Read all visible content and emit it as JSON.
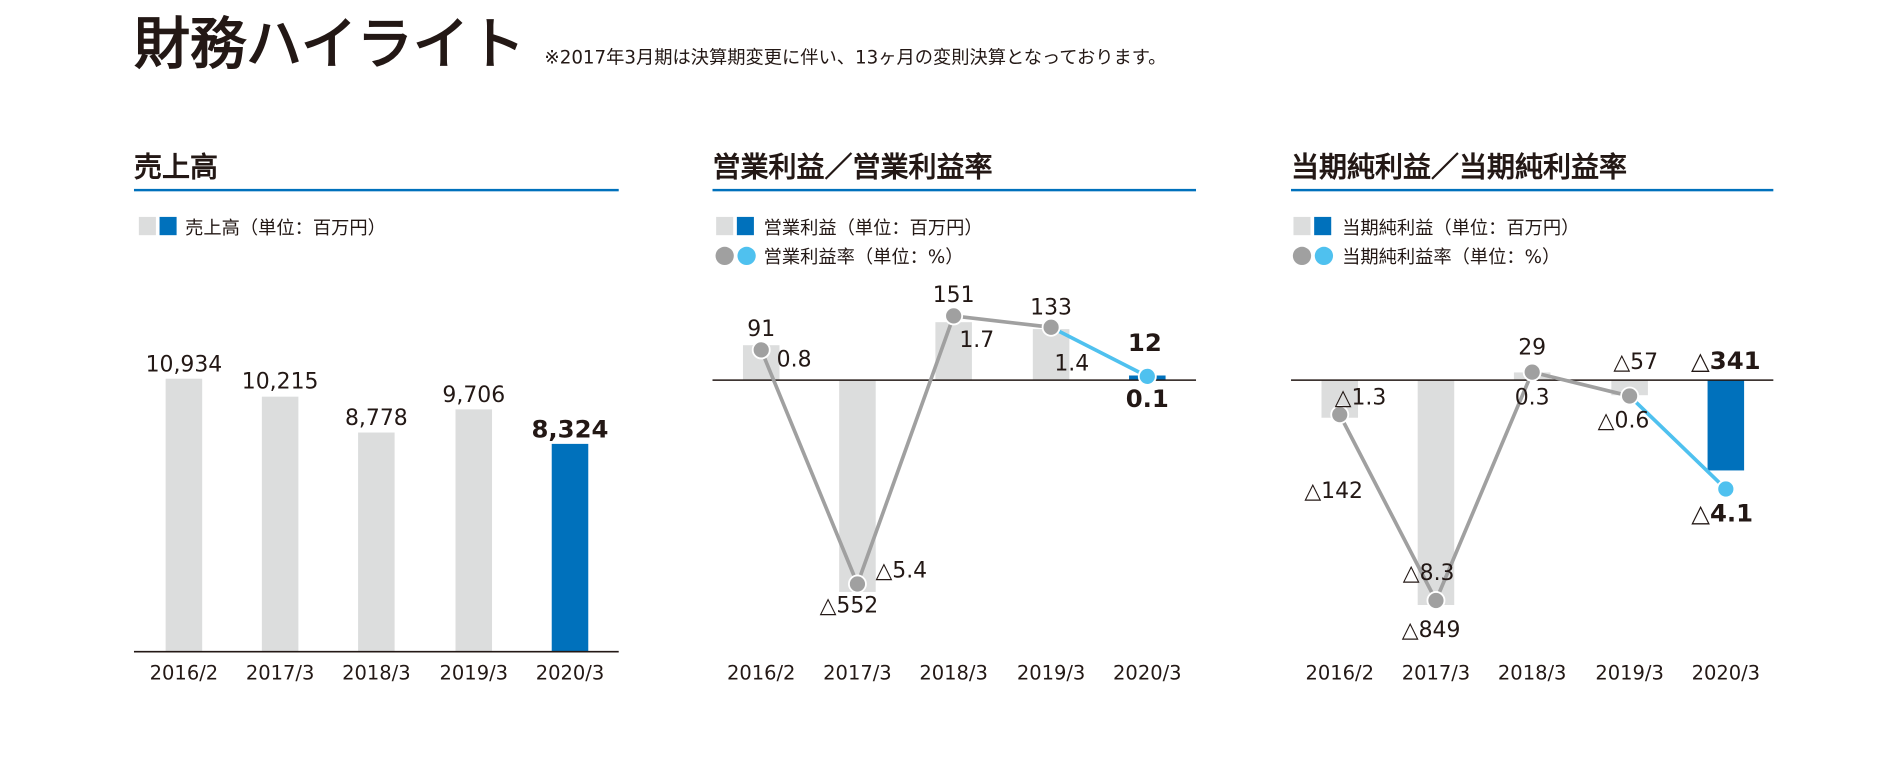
{
  "header": {
    "title": "財務ハイライト",
    "note": "※2017年3月期は決算期変更に伴い、13ヶ月の変則決算となっております。"
  },
  "colors": {
    "past_bar": "#dcdddd",
    "current_bar": "#0071bc",
    "past_line": "#a0a0a0",
    "current_line": "#4fc1ef",
    "heading_rule": "#0071bc",
    "axis": "#231815"
  },
  "chart_data": [
    {
      "type": "bar",
      "heading": "売上高",
      "legend": [
        "売上高（単位：百万円）"
      ],
      "categories": [
        "2016/2",
        "2017/3",
        "2018/3",
        "2019/3",
        "2020/3"
      ],
      "series": [
        {
          "name": "売上高（単位：百万円）",
          "values": [
            10934,
            10215,
            8778,
            9706,
            8324
          ],
          "labels": [
            "10,934",
            "10,215",
            "8,778",
            "9,706",
            "8,324"
          ]
        }
      ],
      "highlight_last": true
    },
    {
      "type": "bar+line",
      "heading": "営業利益／営業利益率",
      "legend": [
        "営業利益（単位：百万円）",
        "営業利益率（単位：%）"
      ],
      "categories": [
        "2016/2",
        "2017/3",
        "2018/3",
        "2019/3",
        "2020/3"
      ],
      "series": [
        {
          "name": "営業利益（単位：百万円）",
          "type": "bar",
          "values": [
            91,
            -552,
            151,
            133,
            12
          ],
          "labels": [
            "91",
            "△552",
            "151",
            "133",
            "12"
          ]
        },
        {
          "name": "営業利益率（単位：%）",
          "type": "line",
          "values": [
            0.8,
            -5.4,
            1.7,
            1.4,
            0.1
          ],
          "labels": [
            "0.8",
            "△5.4",
            "1.7",
            "1.4",
            "0.1"
          ]
        }
      ],
      "highlight_last": true
    },
    {
      "type": "bar+line",
      "heading": "当期純利益／当期純利益率",
      "legend": [
        "当期純利益（単位：百万円）",
        "当期純利益率（単位：%）"
      ],
      "categories": [
        "2016/2",
        "2017/3",
        "2018/3",
        "2019/3",
        "2020/3"
      ],
      "series": [
        {
          "name": "当期純利益（単位：百万円）",
          "type": "bar",
          "values": [
            -142,
            -849,
            29,
            -57,
            -341
          ],
          "labels": [
            "△142",
            "△849",
            "29",
            "△57",
            "△341"
          ]
        },
        {
          "name": "当期純利益率（単位：%）",
          "type": "line",
          "values": [
            -1.3,
            -8.3,
            0.3,
            -0.6,
            -4.1
          ],
          "labels": [
            "△1.3",
            "△8.3",
            "0.3",
            "△0.6",
            "△4.1"
          ]
        }
      ],
      "highlight_last": true
    }
  ]
}
